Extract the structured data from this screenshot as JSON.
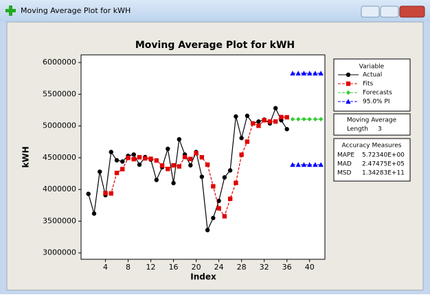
{
  "window": {
    "title": "Moving Average Plot for kWH"
  },
  "chart_data": {
    "type": "line",
    "title": "Moving Average Plot for kWH",
    "xlabel": "Index",
    "ylabel": "kWH",
    "x": [
      1,
      2,
      3,
      4,
      5,
      6,
      7,
      8,
      9,
      10,
      11,
      12,
      13,
      14,
      15,
      16,
      17,
      18,
      19,
      20,
      21,
      22,
      23,
      24,
      25,
      26,
      27,
      28,
      29,
      30,
      31,
      32,
      33,
      34,
      35,
      36,
      37,
      38,
      39,
      40,
      41,
      42
    ],
    "xlim": [
      -0.3,
      42.7
    ],
    "xticks": [
      4,
      8,
      12,
      16,
      20,
      24,
      28,
      32,
      36,
      40
    ],
    "ylim": [
      2900000,
      6120000
    ],
    "yticks": [
      3000000,
      3500000,
      4000000,
      4500000,
      5000000,
      5500000,
      6000000
    ],
    "legend_title": "Variable",
    "series": [
      {
        "name": "Actual",
        "color": "#000000",
        "marker": "circle",
        "dashed": false,
        "values": [
          3930000,
          3620000,
          4280000,
          3910000,
          4590000,
          4460000,
          4440000,
          4530000,
          4550000,
          4390000,
          4510000,
          4470000,
          4150000,
          4350000,
          4640000,
          4100000,
          4790000,
          4550000,
          4380000,
          4590000,
          4200000,
          3360000,
          3550000,
          3820000,
          4190000,
          4300000,
          5150000,
          4810000,
          5160000,
          5040000,
          5070000,
          5100000,
          5040000,
          5280000,
          5090000,
          4950000,
          null,
          null,
          null,
          null,
          null,
          null
        ]
      },
      {
        "name": "Fits",
        "color": "#e00000",
        "marker": "square",
        "dashed": true,
        "values": [
          null,
          null,
          null,
          3943000,
          3937000,
          4260000,
          4320000,
          4497000,
          4477000,
          4507000,
          4490000,
          4483000,
          4457000,
          4377000,
          4323000,
          4380000,
          4363000,
          4510000,
          4480000,
          4573000,
          4507000,
          4390000,
          4050000,
          3703000,
          3577000,
          3853000,
          4103000,
          4547000,
          4753000,
          5040000,
          5003000,
          5090000,
          5070000,
          5070000,
          5140000,
          5137000,
          null,
          null,
          null,
          null,
          null,
          null
        ]
      },
      {
        "name": "Forecasts",
        "color": "#33cc33",
        "marker": "diamond",
        "dashed": true,
        "values": [
          null,
          null,
          null,
          null,
          null,
          null,
          null,
          null,
          null,
          null,
          null,
          null,
          null,
          null,
          null,
          null,
          null,
          null,
          null,
          null,
          null,
          null,
          null,
          null,
          null,
          null,
          null,
          null,
          null,
          null,
          null,
          null,
          null,
          null,
          null,
          null,
          5107000,
          5107000,
          5107000,
          5107000,
          5107000,
          5107000
        ]
      },
      {
        "name": "95.0% PI",
        "color": "#0000ff",
        "marker": "triangle",
        "dashed": true,
        "upper": [
          null,
          null,
          null,
          null,
          null,
          null,
          null,
          null,
          null,
          null,
          null,
          null,
          null,
          null,
          null,
          null,
          null,
          null,
          null,
          null,
          null,
          null,
          null,
          null,
          null,
          null,
          null,
          null,
          null,
          null,
          null,
          null,
          null,
          null,
          null,
          null,
          5830000,
          5830000,
          5830000,
          5830000,
          5830000,
          5830000
        ],
        "lower": [
          null,
          null,
          null,
          null,
          null,
          null,
          null,
          null,
          null,
          null,
          null,
          null,
          null,
          null,
          null,
          null,
          null,
          null,
          null,
          null,
          null,
          null,
          null,
          null,
          null,
          null,
          null,
          null,
          null,
          null,
          null,
          null,
          null,
          null,
          null,
          null,
          4390000,
          4390000,
          4390000,
          4390000,
          4390000,
          4390000
        ]
      }
    ],
    "moving_average": {
      "title": "Moving Average",
      "label": "Length",
      "value": 3
    },
    "accuracy": {
      "title": "Accuracy Measures",
      "rows": [
        [
          "MAPE",
          "5.72340E+00"
        ],
        [
          "MAD",
          "2.47475E+05"
        ],
        [
          "MSD",
          "1.34283E+11"
        ]
      ]
    }
  }
}
